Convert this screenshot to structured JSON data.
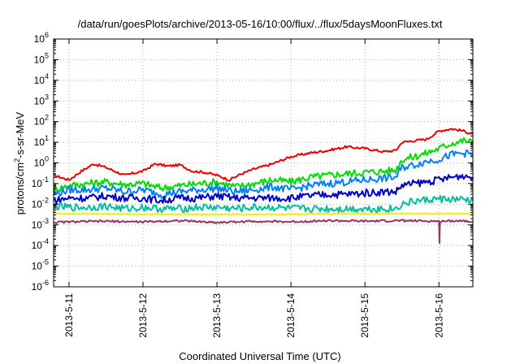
{
  "chart_data": {
    "type": "line",
    "title": "/data/run/goesPlots/archive/2013-05-16/10:00/flux/../flux/5daysMoonFluxes.txt",
    "xlabel": "Coordinated Universal Time (UTC)",
    "ylabel": {
      "prefix": "protons/cm",
      "sup": "2",
      "suffix": "-s-sr-MeV"
    },
    "x_ticks": [
      "2013-5-11",
      "2013-5-12",
      "2013-5-13",
      "2013-5-14",
      "2013-5-15",
      "2013-5-16"
    ],
    "x_range": [
      "2013-05-10T19:00",
      "2013-05-16T11:00"
    ],
    "y_scale": "log",
    "y_ticks": [
      {
        "base": "10",
        "exp": "6"
      },
      {
        "base": "10",
        "exp": "5"
      },
      {
        "base": "10",
        "exp": "4"
      },
      {
        "base": "10",
        "exp": "3"
      },
      {
        "base": "10",
        "exp": "2"
      },
      {
        "base": "10",
        "exp": "1"
      },
      {
        "base": "10",
        "exp": "0"
      },
      {
        "base": "10",
        "exp": "-1"
      },
      {
        "base": "10",
        "exp": "-2"
      },
      {
        "base": "10",
        "exp": "-3"
      },
      {
        "base": "10",
        "exp": "-4"
      },
      {
        "base": "10",
        "exp": "-5"
      },
      {
        "base": "10",
        "exp": "-6"
      }
    ],
    "ylim": [
      1e-06,
      1000000.0
    ],
    "grid": true,
    "series": [
      {
        "color": "#ee0000",
        "x": [
          "2013-05-10T19:00",
          "2013-05-11T00:00",
          "2013-05-11T04:00",
          "2013-05-11T08:00",
          "2013-05-11T12:00",
          "2013-05-11T18:00",
          "2013-05-12T00:00",
          "2013-05-12T04:00",
          "2013-05-12T08:00",
          "2013-05-12T12:00",
          "2013-05-12T16:00",
          "2013-05-12T20:00",
          "2013-05-13T00:00",
          "2013-05-13T04:00",
          "2013-05-13T08:00",
          "2013-05-13T12:00",
          "2013-05-13T18:00",
          "2013-05-14T00:00",
          "2013-05-14T06:00",
          "2013-05-14T12:00",
          "2013-05-14T18:00",
          "2013-05-15T00:00",
          "2013-05-15T06:00",
          "2013-05-15T10:00",
          "2013-05-15T12:00",
          "2013-05-15T16:00",
          "2013-05-15T20:00",
          "2013-05-16T00:00",
          "2013-05-16T04:00",
          "2013-05-16T08:00",
          "2013-05-16T11:00"
        ],
        "y": [
          0.25,
          0.15,
          0.4,
          0.9,
          0.6,
          0.25,
          0.4,
          0.9,
          0.7,
          0.8,
          0.4,
          0.35,
          0.25,
          0.15,
          0.3,
          0.5,
          0.9,
          2,
          3,
          4,
          6,
          5,
          3.5,
          4,
          10,
          12,
          14,
          35,
          45,
          35,
          25
        ]
      },
      {
        "color": "#00dd00",
        "x": [
          "2013-05-10T19:00",
          "2013-05-11T00:00",
          "2013-05-11T06:00",
          "2013-05-11T12:00",
          "2013-05-11T18:00",
          "2013-05-12T00:00",
          "2013-05-12T06:00",
          "2013-05-12T12:00",
          "2013-05-12T18:00",
          "2013-05-13T00:00",
          "2013-05-13T06:00",
          "2013-05-13T12:00",
          "2013-05-13T18:00",
          "2013-05-14T00:00",
          "2013-05-14T06:00",
          "2013-05-14T12:00",
          "2013-05-14T18:00",
          "2013-05-15T00:00",
          "2013-05-15T06:00",
          "2013-05-15T10:00",
          "2013-05-15T12:00",
          "2013-05-15T16:00",
          "2013-05-15T20:00",
          "2013-05-16T00:00",
          "2013-05-16T04:00",
          "2013-05-16T08:00",
          "2013-05-16T11:00"
        ],
        "y": [
          0.05,
          0.08,
          0.1,
          0.12,
          0.09,
          0.1,
          0.06,
          0.08,
          0.1,
          0.12,
          0.07,
          0.1,
          0.15,
          0.12,
          0.2,
          0.25,
          0.3,
          0.35,
          0.4,
          0.45,
          1.5,
          2,
          3,
          5,
          9,
          12,
          10
        ]
      },
      {
        "color": "#0080ff",
        "x": [
          "2013-05-10T19:00",
          "2013-05-11T00:00",
          "2013-05-11T06:00",
          "2013-05-11T12:00",
          "2013-05-11T18:00",
          "2013-05-12T00:00",
          "2013-05-12T06:00",
          "2013-05-12T12:00",
          "2013-05-12T18:00",
          "2013-05-13T00:00",
          "2013-05-13T06:00",
          "2013-05-13T12:00",
          "2013-05-13T18:00",
          "2013-05-14T00:00",
          "2013-05-14T06:00",
          "2013-05-14T12:00",
          "2013-05-14T18:00",
          "2013-05-15T00:00",
          "2013-05-15T06:00",
          "2013-05-15T10:00",
          "2013-05-15T12:00",
          "2013-05-15T16:00",
          "2013-05-15T20:00",
          "2013-05-16T00:00",
          "2013-05-16T04:00",
          "2013-05-16T08:00",
          "2013-05-16T11:00"
        ],
        "y": [
          0.03,
          0.05,
          0.05,
          0.06,
          0.04,
          0.05,
          0.03,
          0.04,
          0.05,
          0.06,
          0.04,
          0.05,
          0.07,
          0.05,
          0.08,
          0.1,
          0.12,
          0.15,
          0.18,
          0.2,
          0.6,
          0.8,
          1.2,
          1.5,
          2.5,
          3,
          2.5
        ]
      },
      {
        "color": "#0000cc",
        "x": [
          "2013-05-10T19:00",
          "2013-05-11T00:00",
          "2013-05-11T06:00",
          "2013-05-11T12:00",
          "2013-05-11T18:00",
          "2013-05-12T00:00",
          "2013-05-12T06:00",
          "2013-05-12T12:00",
          "2013-05-12T18:00",
          "2013-05-13T00:00",
          "2013-05-13T06:00",
          "2013-05-13T12:00",
          "2013-05-13T18:00",
          "2013-05-14T00:00",
          "2013-05-14T06:00",
          "2013-05-14T12:00",
          "2013-05-14T18:00",
          "2013-05-15T00:00",
          "2013-05-15T06:00",
          "2013-05-15T10:00",
          "2013-05-15T12:00",
          "2013-05-15T16:00",
          "2013-05-15T20:00",
          "2013-05-16T00:00",
          "2013-05-16T04:00",
          "2013-05-16T08:00",
          "2013-05-16T11:00"
        ],
        "y": [
          0.015,
          0.02,
          0.02,
          0.025,
          0.02,
          0.02,
          0.015,
          0.02,
          0.02,
          0.025,
          0.02,
          0.02,
          0.02,
          0.02,
          0.025,
          0.03,
          0.03,
          0.035,
          0.04,
          0.04,
          0.08,
          0.1,
          0.12,
          0.15,
          0.2,
          0.25,
          0.2
        ]
      },
      {
        "color": "#00c0a0",
        "x": [
          "2013-05-10T19:00",
          "2013-05-11T00:00",
          "2013-05-11T06:00",
          "2013-05-11T12:00",
          "2013-05-11T18:00",
          "2013-05-12T00:00",
          "2013-05-12T06:00",
          "2013-05-12T12:00",
          "2013-05-12T18:00",
          "2013-05-13T00:00",
          "2013-05-13T06:00",
          "2013-05-13T12:00",
          "2013-05-13T18:00",
          "2013-05-14T00:00",
          "2013-05-14T06:00",
          "2013-05-14T12:00",
          "2013-05-14T18:00",
          "2013-05-15T00:00",
          "2013-05-15T06:00",
          "2013-05-15T10:00",
          "2013-05-15T12:00",
          "2013-05-15T16:00",
          "2013-05-15T20:00",
          "2013-05-16T00:00",
          "2013-05-16T04:00",
          "2013-05-16T08:00",
          "2013-05-16T11:00"
        ],
        "y": [
          0.008,
          0.007,
          0.007,
          0.008,
          0.006,
          0.007,
          0.006,
          0.006,
          0.007,
          0.007,
          0.006,
          0.007,
          0.007,
          0.006,
          0.006,
          0.006,
          0.006,
          0.006,
          0.006,
          0.006,
          0.01,
          0.014,
          0.016,
          0.018,
          0.017,
          0.016,
          0.015
        ]
      },
      {
        "color": "#f0f000",
        "x": [
          "2013-05-10T19:00",
          "2013-05-12T00:00",
          "2013-05-13T00:00",
          "2013-05-14T00:00",
          "2013-05-15T00:00",
          "2013-05-16T00:00",
          "2013-05-16T11:00"
        ],
        "y": [
          0.0035,
          0.0033,
          0.0032,
          0.0033,
          0.0034,
          0.0035,
          0.0034
        ]
      },
      {
        "color": "#993366",
        "x": [
          "2013-05-10T19:00",
          "2013-05-11T00:00",
          "2013-05-11T12:00",
          "2013-05-12T00:00",
          "2013-05-12T12:00",
          "2013-05-13T00:00",
          "2013-05-13T12:00",
          "2013-05-14T00:00",
          "2013-05-14T12:00",
          "2013-05-15T00:00",
          "2013-05-15T12:00",
          "2013-05-16T00:00",
          "2013-05-16T00:10",
          "2013-05-16T00:20",
          "2013-05-16T06:00",
          "2013-05-16T11:00"
        ],
        "y": [
          0.0013,
          0.0014,
          0.0015,
          0.0014,
          0.0016,
          0.0013,
          0.0015,
          0.0014,
          0.0016,
          0.0015,
          0.0016,
          0.0015,
          0.00012,
          0.0015,
          0.0016,
          0.0015
        ]
      }
    ]
  }
}
